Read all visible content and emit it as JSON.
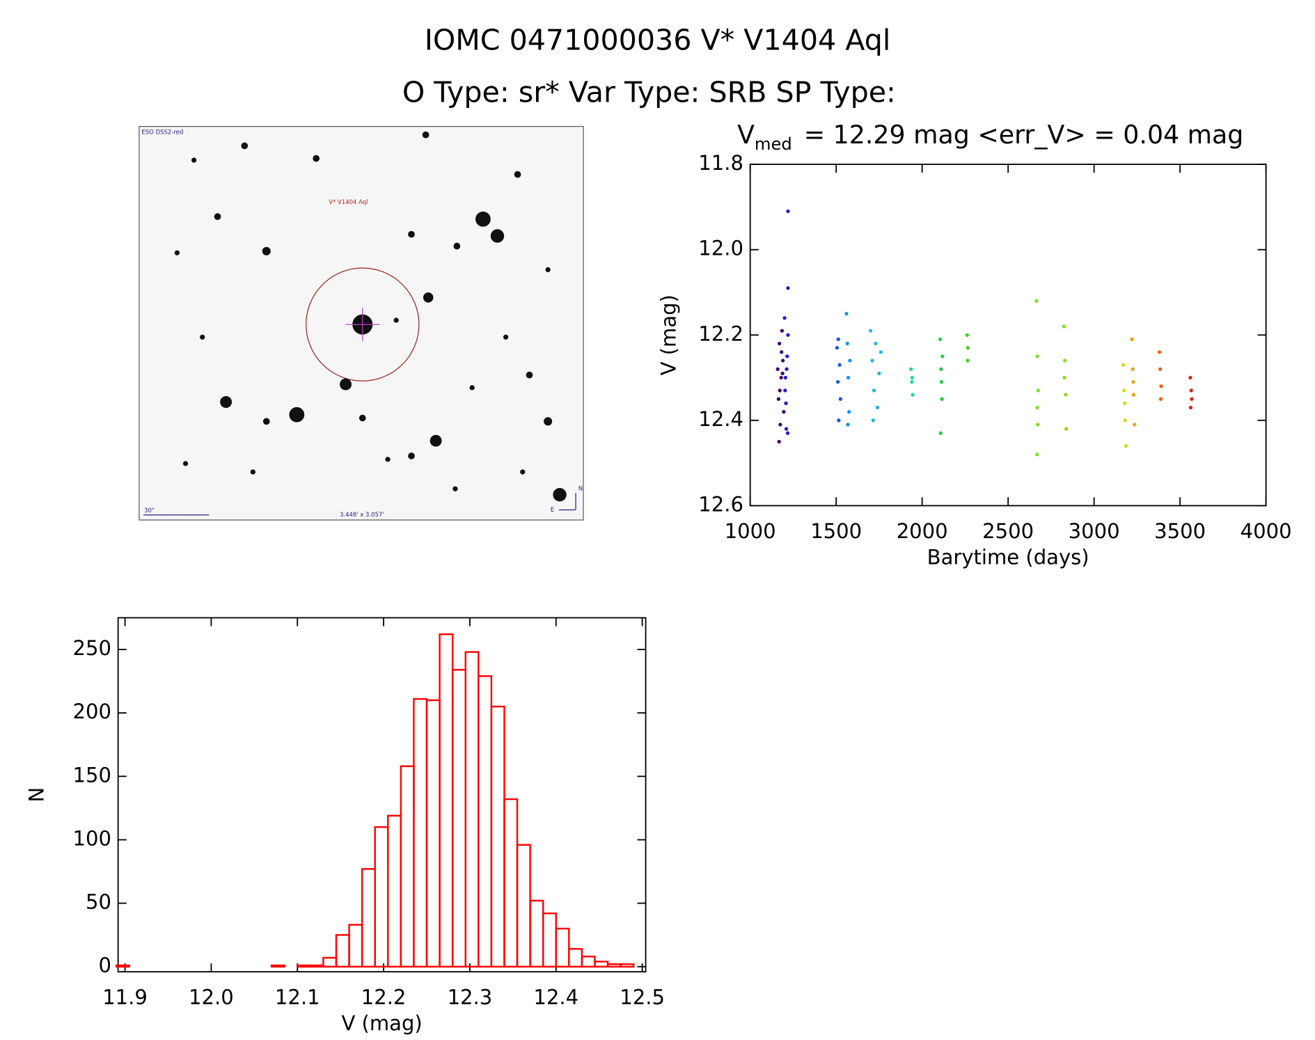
{
  "header": {
    "title": "IOMC 0471000036   V* V1404 Aql",
    "subtitle": "O Type: sr*  Var Type: SRB  SP Type:"
  },
  "image": {
    "survey": "ESO DSS2-red",
    "target": "V* V1404 Aql",
    "scale": "30\"",
    "fov": "3.448' x 3.057'",
    "north": "N",
    "east": "E"
  },
  "chart_data": [
    {
      "type": "scatter",
      "title": [
        "V",
        "med",
        "= 12.29 mag <err_V> = 0.04 mag"
      ],
      "x_label": "Barytime (days)",
      "y_label": "V (mag)",
      "xlim": [
        1000,
        4000
      ],
      "xticks": [
        1000,
        1500,
        2000,
        2500,
        3000,
        3500,
        4000
      ],
      "ylim": [
        11.8,
        12.6
      ],
      "y_inverted": true,
      "yticks": [
        11.8,
        {
          "value": 12.0,
          "label": "12.0"
        },
        12.2,
        12.4,
        12.6
      ],
      "series": [
        {
          "color": "#3d0a6e",
          "x": [
            1160,
            1165,
            1170,
            1175,
            1180,
            1185,
            1190,
            1195,
            1168,
            1182,
            1172,
            1188
          ],
          "values": [
            12.28,
            12.35,
            12.22,
            12.41,
            12.3,
            12.19,
            12.26,
            12.38,
            12.45,
            12.24,
            12.33,
            12.29
          ]
        },
        {
          "color": "#2a1ad0",
          "x": [
            1200,
            1205,
            1210,
            1215,
            1220,
            1208,
            1212,
            1218,
            1220,
            1203,
            1220
          ],
          "values": [
            12.16,
            12.3,
            12.42,
            12.25,
            12.2,
            12.36,
            12.28,
            12.43,
            11.91,
            12.33,
            12.09
          ]
        },
        {
          "color": "#1a55e0",
          "x": [
            1505,
            1510,
            1515,
            1520,
            1525,
            1512
          ],
          "values": [
            12.23,
            12.31,
            12.4,
            12.27,
            12.35,
            12.21
          ]
        },
        {
          "color": "#1a8ff0",
          "x": [
            1560,
            1565,
            1570,
            1575,
            1580,
            1568
          ],
          "values": [
            12.15,
            12.22,
            12.3,
            12.38,
            12.26,
            12.41
          ]
        },
        {
          "color": "#20b8e0",
          "x": [
            1700,
            1710,
            1720,
            1730,
            1740,
            1750,
            1760,
            1715
          ],
          "values": [
            12.19,
            12.26,
            12.33,
            12.22,
            12.37,
            12.29,
            12.24,
            12.4
          ]
        },
        {
          "color": "#20d8a0",
          "x": [
            1935,
            1940,
            1945,
            1942
          ],
          "values": [
            12.28,
            12.31,
            12.34,
            12.3
          ]
        },
        {
          "color": "#20d040",
          "x": [
            2105,
            2110,
            2115,
            2108,
            2112,
            2118
          ],
          "values": [
            12.21,
            12.28,
            12.35,
            12.43,
            12.31,
            12.25
          ]
        },
        {
          "color": "#40d020",
          "x": [
            2262,
            2266,
            2265
          ],
          "values": [
            12.2,
            12.23,
            12.26
          ]
        },
        {
          "color": "#80e020",
          "x": [
            2665,
            2670,
            2675,
            2672,
            2668,
            2670
          ],
          "values": [
            12.12,
            12.25,
            12.33,
            12.41,
            12.48,
            12.37
          ]
        },
        {
          "color": "#90d820",
          "x": [
            2825,
            2830,
            2835,
            2838,
            2828
          ],
          "values": [
            12.18,
            12.26,
            12.34,
            12.42,
            12.3
          ]
        },
        {
          "color": "#d0e000",
          "x": [
            3170,
            3175,
            3180,
            3185,
            3178
          ],
          "values": [
            12.27,
            12.33,
            12.4,
            12.46,
            12.36
          ]
        },
        {
          "color": "#f0a010",
          "x": [
            3220,
            3225,
            3230,
            3235,
            3228
          ],
          "values": [
            12.21,
            12.28,
            12.34,
            12.41,
            12.31
          ]
        },
        {
          "color": "#f06010",
          "x": [
            3380,
            3385,
            3390,
            3388
          ],
          "values": [
            12.24,
            12.28,
            12.32,
            12.35
          ]
        },
        {
          "color": "#e02020",
          "x": [
            3560,
            3565,
            3568,
            3562
          ],
          "values": [
            12.3,
            12.33,
            12.35,
            12.37
          ]
        }
      ]
    },
    {
      "type": "histogram",
      "x_label": "V (mag)",
      "y_label": "N",
      "color": "#ff0000",
      "xlim": [
        11.892,
        12.504
      ],
      "xticks": [
        11.9,
        {
          "value": 12.0,
          "label": "12.0"
        },
        12.1,
        12.2,
        12.3,
        12.4,
        12.5
      ],
      "ylim": [
        -4,
        275
      ],
      "yticks": [
        0,
        50,
        100,
        150,
        200,
        250
      ],
      "bins": [
        11.89,
        11.905,
        11.92,
        11.935,
        11.95,
        11.965,
        11.98,
        11.995,
        12.01,
        12.025,
        12.04,
        12.055,
        12.07,
        12.085,
        12.1,
        12.115,
        12.13,
        12.145,
        12.16,
        12.175,
        12.19,
        12.205,
        12.22,
        12.235,
        12.25,
        12.265,
        12.28,
        12.295,
        12.31,
        12.325,
        12.34,
        12.355,
        12.37,
        12.385,
        12.4,
        12.415,
        12.43,
        12.445,
        12.46,
        12.475,
        12.49
      ],
      "values": [
        1,
        0,
        0,
        0,
        0,
        0,
        0,
        0,
        0,
        0,
        0,
        0,
        1,
        0,
        1,
        1,
        7,
        25,
        33,
        77,
        110,
        119,
        158,
        211,
        210,
        262,
        234,
        248,
        229,
        205,
        132,
        96,
        52,
        42,
        30,
        14,
        8,
        4,
        2,
        2
      ]
    }
  ]
}
